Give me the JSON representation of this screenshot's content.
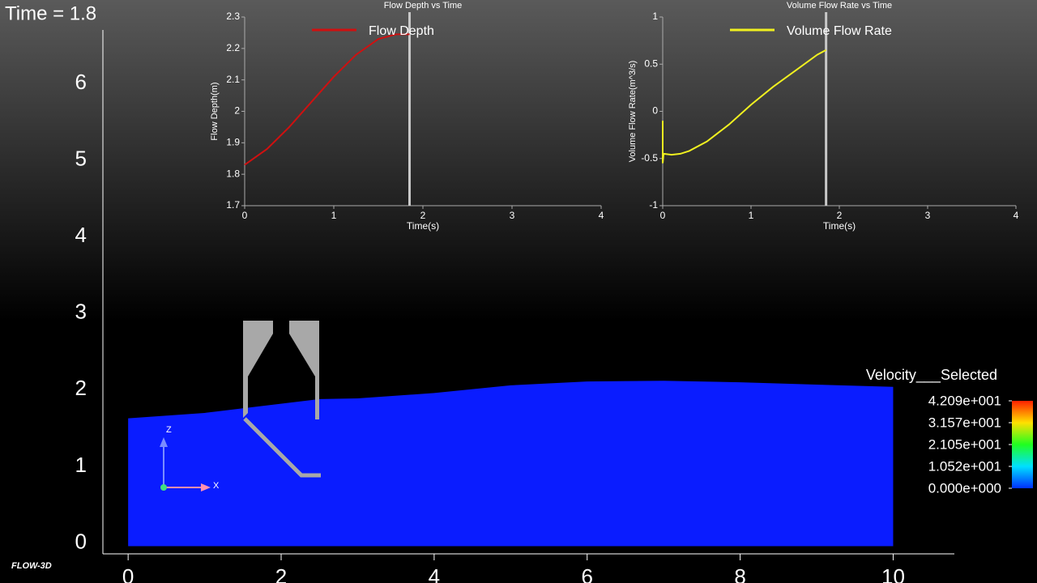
{
  "time_label": "Time = 1.8",
  "logo": "FLOW-3D",
  "triad": [
    "Z",
    "X"
  ],
  "colorbar": {
    "title": "Velocity___Selected",
    "ticks": [
      {
        "value": 42.09,
        "label": "4.209e+001"
      },
      {
        "value": 31.57,
        "label": "3.157e+001"
      },
      {
        "value": 21.05,
        "label": "2.105e+001"
      },
      {
        "value": 10.52,
        "label": "1.052e+001"
      },
      {
        "value": 0,
        "label": "0.000e+000"
      }
    ]
  },
  "chart_data": [
    {
      "type": "area",
      "color": "#0a1cff",
      "x": [
        0,
        1,
        1.5,
        2.5,
        3,
        4,
        5,
        6,
        7,
        8,
        9,
        10
      ],
      "values": [
        1.67,
        1.74,
        1.8,
        1.92,
        1.93,
        2.0,
        2.1,
        2.15,
        2.16,
        2.14,
        2.11,
        2.08
      ],
      "xlim": [
        -0.33,
        10.8
      ],
      "ylim": [
        -0.1,
        6.74
      ],
      "xticks": [
        0,
        2,
        4,
        6,
        8,
        10
      ],
      "yticks": [
        0,
        1,
        2,
        3,
        4,
        5,
        6
      ]
    },
    {
      "type": "line",
      "title": "Flow Depth vs Time",
      "x_label": "Time(s)",
      "y_label": "Flow Depth(m)",
      "x": [
        0,
        0.25,
        0.5,
        0.75,
        1,
        1.25,
        1.5,
        1.7,
        1.85
      ],
      "series": [
        {
          "name": "Flow Depth",
          "color": "#d01010",
          "values": [
            1.83,
            1.88,
            1.95,
            2.03,
            2.11,
            2.18,
            2.23,
            2.245,
            2.245
          ]
        }
      ],
      "time_marker": 1.85,
      "xlim": [
        0,
        4
      ],
      "ylim": [
        1.7,
        2.3
      ],
      "xticks": [
        0,
        1,
        2,
        3,
        4
      ],
      "yticks": [
        1.7,
        1.8,
        1.9,
        2,
        2.1,
        2.2,
        2.3
      ]
    },
    {
      "type": "line",
      "title": "Volume Flow Rate vs Time",
      "x_label": "Time(s)",
      "y_label": "Volume Flow Rate(m^3/s)",
      "x": [
        0,
        0,
        0.01,
        0.1,
        0.2,
        0.3,
        0.5,
        0.75,
        1,
        1.25,
        1.5,
        1.75,
        1.85
      ],
      "series": [
        {
          "name": "Volume Flow Rate",
          "color": "#f0f020",
          "values": [
            -0.1,
            -0.55,
            -0.45,
            -0.46,
            -0.45,
            -0.42,
            -0.32,
            -0.14,
            0.07,
            0.26,
            0.43,
            0.6,
            0.65
          ]
        }
      ],
      "time_marker": 1.85,
      "xlim": [
        0,
        4
      ],
      "ylim": [
        -1,
        1
      ],
      "xticks": [
        0,
        1,
        2,
        3,
        4
      ],
      "yticks": [
        -1,
        -0.5,
        0,
        0.5,
        1
      ]
    }
  ]
}
